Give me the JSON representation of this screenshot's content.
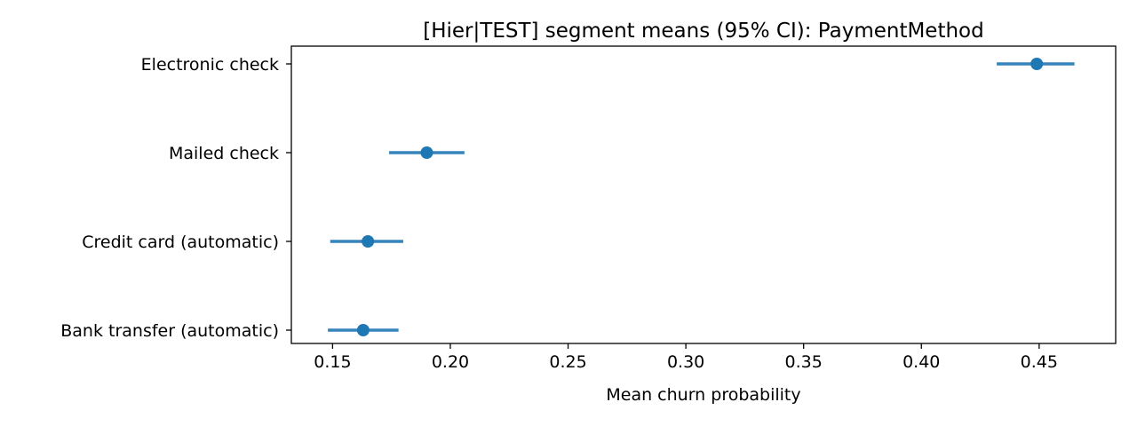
{
  "chart_data": {
    "type": "scatter",
    "title": "[Hier|TEST] segment means (95% CI): PaymentMethod",
    "xlabel": "Mean churn probability",
    "ylabel": "",
    "xlim": [
      0.1325,
      0.4825
    ],
    "xticks": [
      0.15,
      0.2,
      0.25,
      0.3,
      0.35,
      0.4,
      0.45
    ],
    "xtick_labels": [
      "0.15",
      "0.20",
      "0.25",
      "0.30",
      "0.35",
      "0.40",
      "0.45"
    ],
    "grid": false,
    "legend": "none",
    "color": "#1f77b4",
    "categories": [
      "Electronic check",
      "Mailed check",
      "Credit card (automatic)",
      "Bank transfer (automatic)"
    ],
    "points": [
      {
        "category": "Electronic check",
        "mean": 0.449,
        "ci_low": 0.432,
        "ci_high": 0.465
      },
      {
        "category": "Mailed check",
        "mean": 0.19,
        "ci_low": 0.174,
        "ci_high": 0.206
      },
      {
        "category": "Credit card (automatic)",
        "mean": 0.165,
        "ci_low": 0.149,
        "ci_high": 0.18
      },
      {
        "category": "Bank transfer (automatic)",
        "mean": 0.163,
        "ci_low": 0.148,
        "ci_high": 0.178
      }
    ]
  }
}
